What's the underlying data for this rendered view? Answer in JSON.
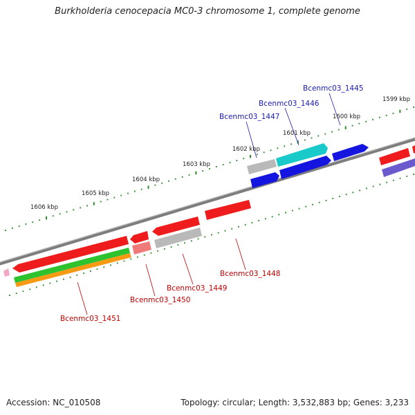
{
  "title": "Burkholderia cenocepacia MC0-3 chromosome 1, complete genome",
  "footer": {
    "accession": "Accession: NC_010508",
    "topology": "Topology: circular; Length: 3,532,883 bp; Genes: 3,233"
  },
  "colors": {
    "backbone": "#8a8a8a",
    "tick": "#2e8b2e",
    "red": "#ee1c1c",
    "blue": "#1515e0",
    "cyan": "#1ac9c9",
    "gray": "#b9b9b9",
    "green": "#2fc22f",
    "orange": "#f59a12",
    "pink": "#f07a7a",
    "violet": "#6a5acd",
    "forward_label": "#1a1ab4",
    "reverse_label": "#c00000"
  },
  "scale_labels": [
    "1599 kbp",
    "1600 kbp",
    "1601 kbp",
    "1602 kbp",
    "1603 kbp",
    "1604 kbp",
    "1605 kbp",
    "1606 kbp"
  ],
  "gene_labels": {
    "forward": [
      "Bcenmc03_1445",
      "Bcenmc03_1446",
      "Bcenmc03_1447"
    ],
    "reverse": [
      "Bcenmc03_1448",
      "Bcenmc03_1449",
      "Bcenmc03_1450",
      "Bcenmc03_1451"
    ]
  }
}
